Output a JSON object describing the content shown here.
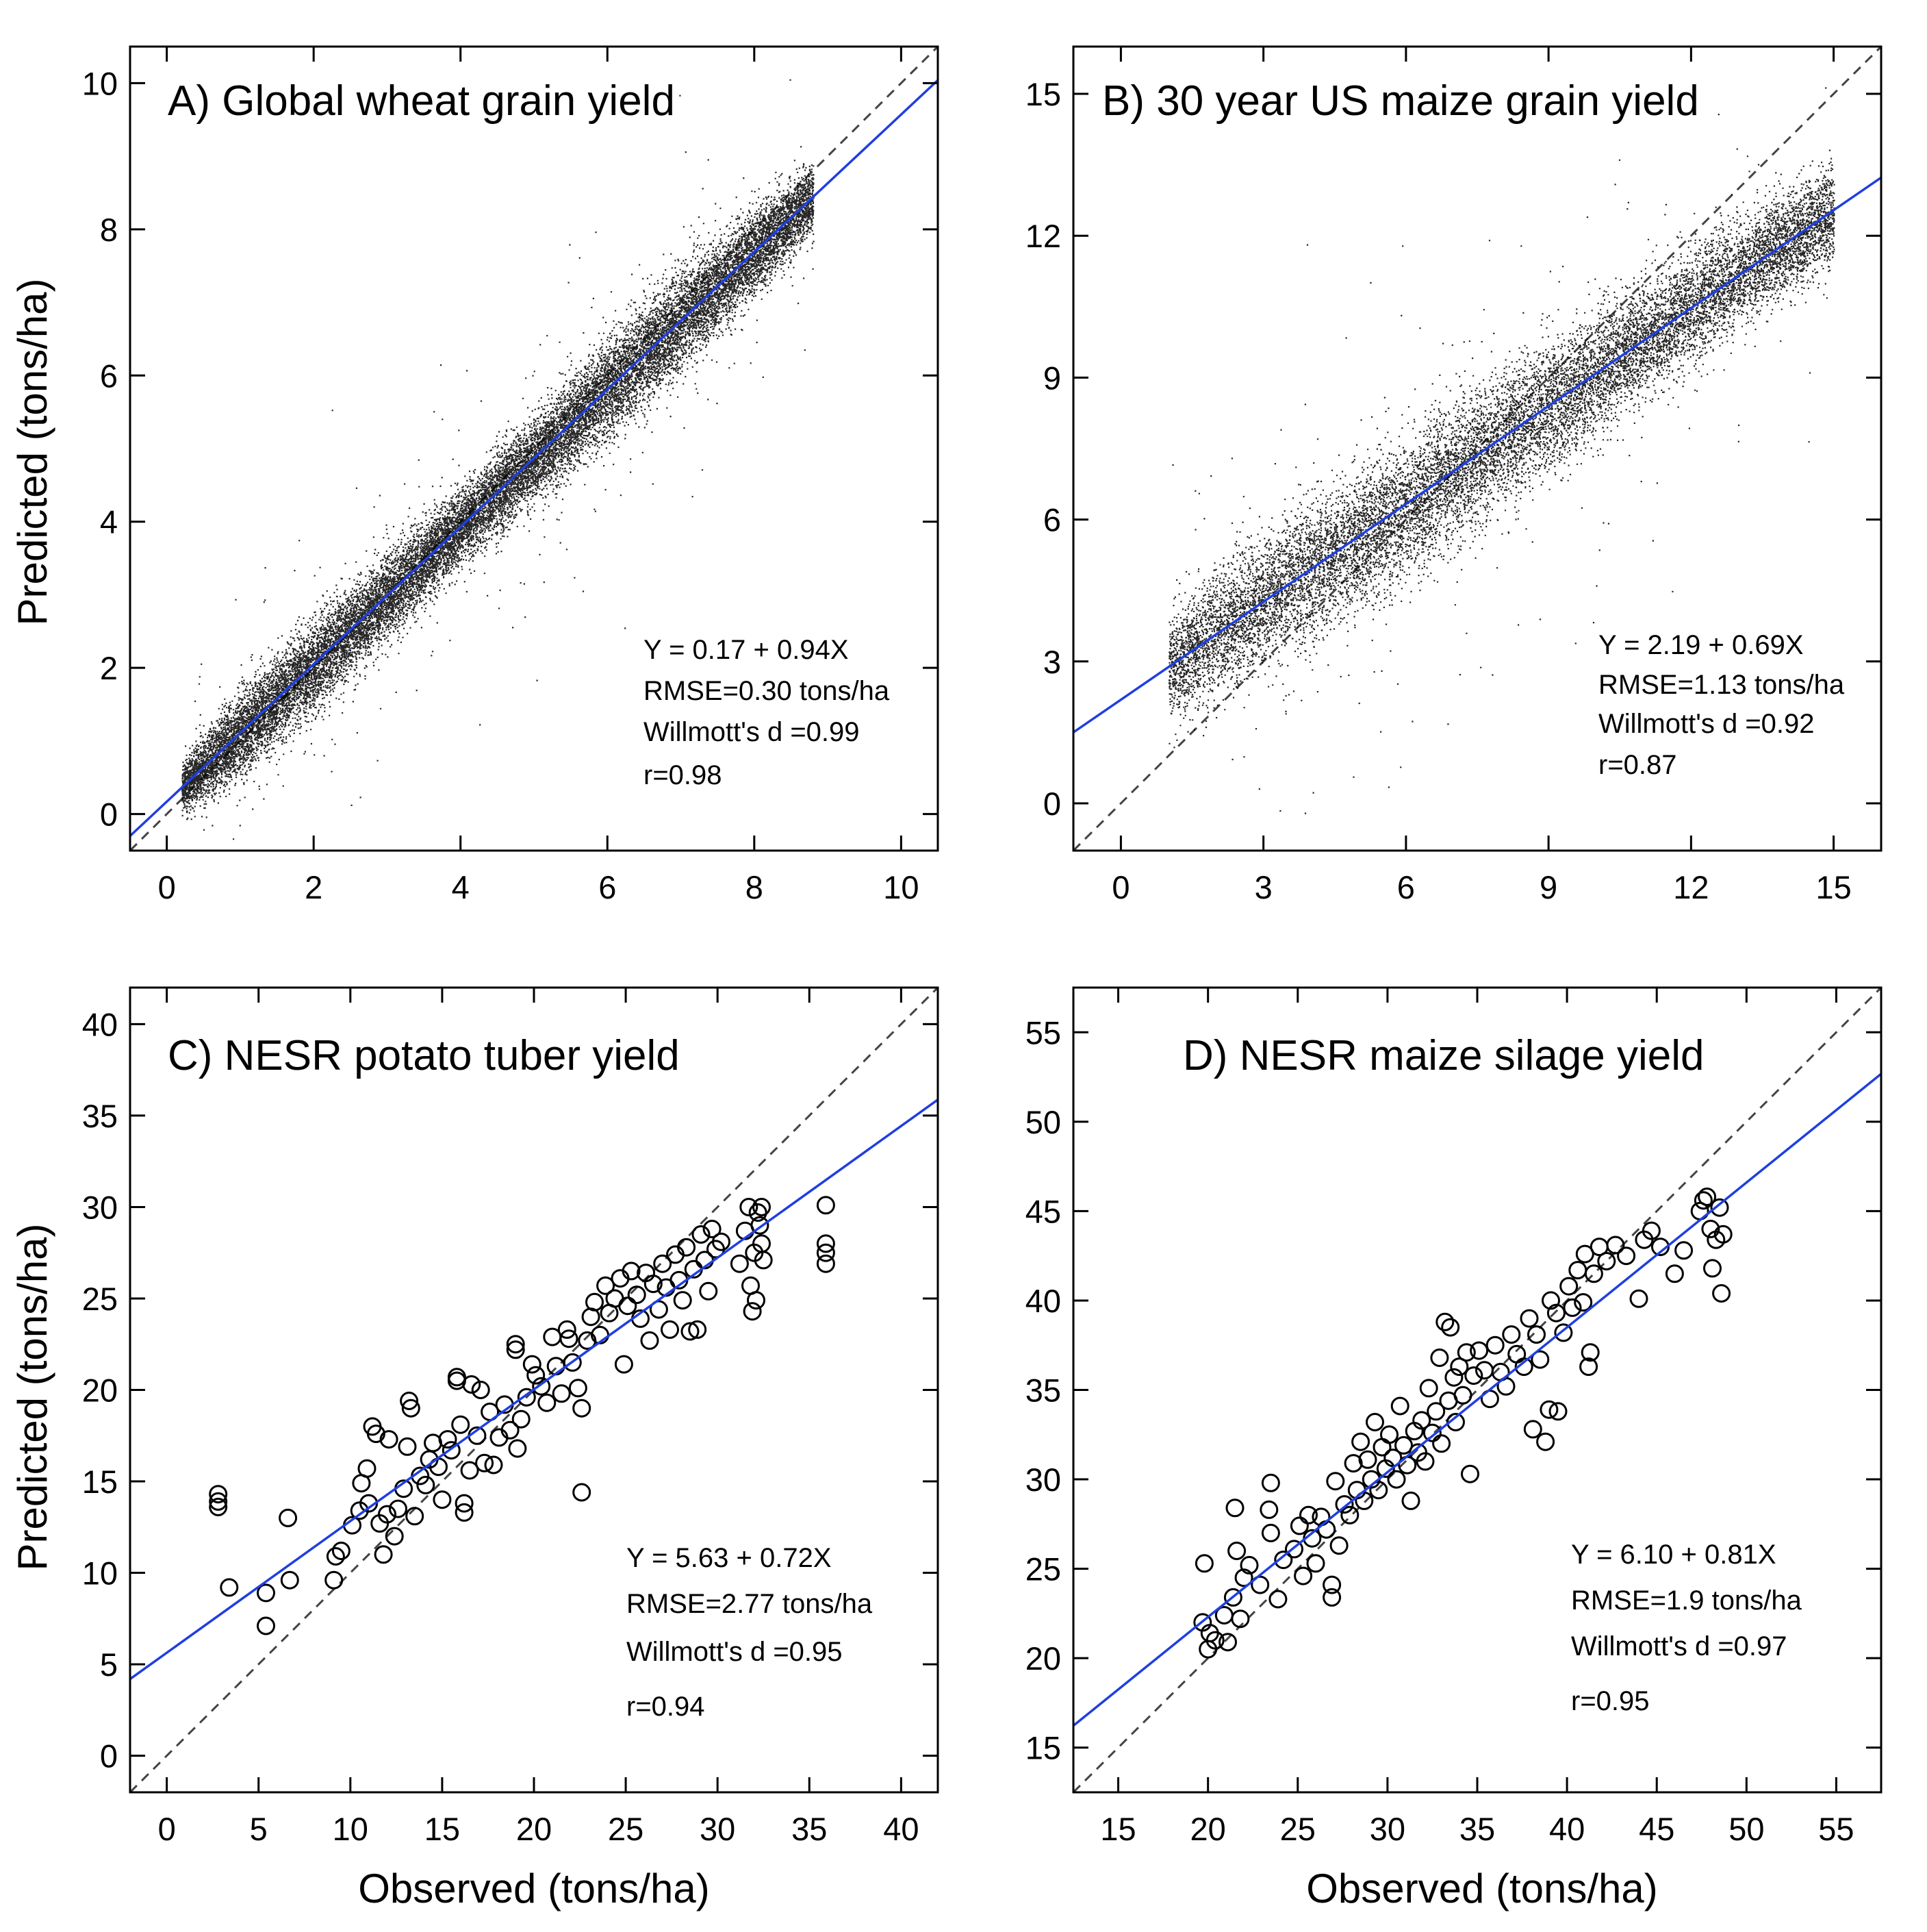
{
  "figure": {
    "x_axis_title": "Observed (tons/ha)",
    "y_axis_title": "Predicted (tons/ha)"
  },
  "chart_data": [
    {
      "type": "scatter",
      "title": "A) Global wheat grain yield",
      "xlabel": "",
      "ylabel": "Predicted (tons/ha)",
      "xlim": [
        -0.5,
        10.5
      ],
      "ylim": [
        -0.5,
        10.5
      ],
      "xticks": [
        0,
        2,
        4,
        6,
        8,
        10
      ],
      "yticks": [
        0,
        2,
        4,
        6,
        8,
        10
      ],
      "marker": "dot",
      "point_density": "very dense",
      "x_range_of_points": [
        0.2,
        8.8
      ],
      "point_cloud": {
        "x": [
          0.2,
          1,
          2,
          3,
          4,
          5,
          6,
          7,
          8,
          8.8
        ],
        "y_center": [
          0.36,
          1.11,
          2.05,
          2.99,
          3.93,
          4.87,
          5.81,
          6.75,
          7.69,
          8.44
        ],
        "y_spread": [
          0.3,
          0.5,
          0.55,
          0.5,
          0.45,
          0.5,
          0.6,
          0.6,
          0.5,
          0.4
        ]
      },
      "fit": {
        "intercept": 0.17,
        "slope": 0.94,
        "color": "#1f3fe0"
      },
      "reference_line": "1:1 dashed",
      "stats": [
        "Y = 0.17 + 0.94X",
        "RMSE=0.30 tons/ha",
        "Willmott's d =0.99",
        "r=0.98"
      ]
    },
    {
      "type": "scatter",
      "title": "B) 30 year US maize grain yield",
      "xlabel": "",
      "ylabel": "",
      "xlim": [
        -1,
        16
      ],
      "ylim": [
        -1,
        16
      ],
      "xticks": [
        0,
        3,
        6,
        9,
        12,
        15
      ],
      "yticks": [
        0,
        3,
        6,
        9,
        12,
        15
      ],
      "marker": "dot",
      "point_density": "very dense",
      "x_range_of_points": [
        1,
        15
      ],
      "point_cloud": {
        "x": [
          1,
          3,
          5,
          7,
          9,
          11,
          13,
          15
        ],
        "y_center": [
          2.9,
          4.3,
          5.6,
          7.0,
          8.4,
          9.8,
          11.2,
          12.5
        ],
        "y_spread": [
          1.0,
          1.2,
          1.3,
          1.3,
          1.2,
          1.1,
          1.0,
          0.9
        ]
      },
      "fit": {
        "intercept": 2.19,
        "slope": 0.69,
        "color": "#1f3fe0"
      },
      "reference_line": "1:1 dashed",
      "stats": [
        "Y = 2.19 + 0.69X",
        "RMSE=1.13 tons/ha",
        "Willmott's d =0.92",
        "r=0.87"
      ]
    },
    {
      "type": "scatter",
      "title": "C) NESR potato tuber yield",
      "xlabel": "Observed (tons/ha)",
      "ylabel": "Predicted (tons/ha)",
      "xlim": [
        -2,
        42
      ],
      "ylim": [
        -2,
        42
      ],
      "xticks": [
        0,
        5,
        10,
        15,
        20,
        25,
        30,
        35,
        40
      ],
      "yticks": [
        0,
        5,
        10,
        15,
        20,
        25,
        30,
        35,
        40
      ],
      "marker": "open-circle",
      "points": [
        [
          2.8,
          14.3
        ],
        [
          2.8,
          13.9
        ],
        [
          2.8,
          13.6
        ],
        [
          3.4,
          9.2
        ],
        [
          5.4,
          8.9
        ],
        [
          5.4,
          7.1
        ],
        [
          6.6,
          13.0
        ],
        [
          6.7,
          9.6
        ],
        [
          9.1,
          9.6
        ],
        [
          9.2,
          10.9
        ],
        [
          9.5,
          11.2
        ],
        [
          10.1,
          12.6
        ],
        [
          10.5,
          13.4
        ],
        [
          10.6,
          14.9
        ],
        [
          10.9,
          15.7
        ],
        [
          11,
          13.8
        ],
        [
          11.2,
          18.0
        ],
        [
          11.4,
          17.6
        ],
        [
          11.6,
          12.7
        ],
        [
          11.8,
          11.0
        ],
        [
          12,
          13.2
        ],
        [
          12.1,
          17.3
        ],
        [
          12.4,
          12.0
        ],
        [
          12.6,
          13.5
        ],
        [
          12.9,
          14.6
        ],
        [
          13.1,
          16.9
        ],
        [
          13.2,
          19.4
        ],
        [
          13.3,
          19.0
        ],
        [
          13.5,
          13.1
        ],
        [
          13.8,
          15.3
        ],
        [
          14.1,
          14.8
        ],
        [
          14.3,
          16.2
        ],
        [
          14.5,
          17.1
        ],
        [
          14.8,
          15.8
        ],
        [
          15.0,
          14.0
        ],
        [
          15.3,
          17.3
        ],
        [
          15.5,
          16.7
        ],
        [
          15.8,
          20.7
        ],
        [
          15.8,
          20.5
        ],
        [
          16.0,
          18.1
        ],
        [
          16.2,
          13.3
        ],
        [
          16.2,
          13.8
        ],
        [
          16.5,
          15.6
        ],
        [
          16.6,
          20.3
        ],
        [
          16.9,
          17.5
        ],
        [
          17.1,
          20.0
        ],
        [
          17.3,
          16.0
        ],
        [
          17.6,
          18.8
        ],
        [
          17.8,
          15.9
        ],
        [
          18.1,
          17.4
        ],
        [
          18.4,
          19.2
        ],
        [
          18.7,
          17.8
        ],
        [
          19.0,
          22.5
        ],
        [
          19.0,
          22.2
        ],
        [
          19.1,
          16.8
        ],
        [
          19.3,
          18.4
        ],
        [
          19.6,
          19.6
        ],
        [
          19.9,
          21.4
        ],
        [
          20.1,
          20.8
        ],
        [
          20.4,
          20.2
        ],
        [
          20.7,
          19.3
        ],
        [
          21.0,
          22.9
        ],
        [
          21.2,
          21.3
        ],
        [
          21.5,
          19.8
        ],
        [
          21.8,
          23.3
        ],
        [
          21.9,
          22.8
        ],
        [
          22.1,
          21.5
        ],
        [
          22.4,
          20.1
        ],
        [
          22.6,
          19.0
        ],
        [
          22.6,
          14.4
        ],
        [
          22.9,
          22.7
        ],
        [
          23.1,
          24.0
        ],
        [
          23.3,
          24.8
        ],
        [
          23.6,
          23.0
        ],
        [
          23.9,
          25.7
        ],
        [
          24.1,
          24.2
        ],
        [
          24.4,
          25.0
        ],
        [
          24.7,
          26.1
        ],
        [
          24.9,
          21.4
        ],
        [
          25.1,
          24.6
        ],
        [
          25.3,
          26.5
        ],
        [
          25.6,
          25.2
        ],
        [
          25.8,
          23.9
        ],
        [
          26.1,
          26.4
        ],
        [
          26.3,
          22.7
        ],
        [
          26.5,
          25.8
        ],
        [
          26.8,
          24.4
        ],
        [
          27.0,
          26.9
        ],
        [
          27.2,
          25.6
        ],
        [
          27.4,
          23.3
        ],
        [
          27.7,
          27.4
        ],
        [
          27.9,
          26.0
        ],
        [
          28.1,
          24.9
        ],
        [
          28.3,
          27.8
        ],
        [
          28.5,
          23.2
        ],
        [
          28.7,
          26.6
        ],
        [
          28.9,
          23.3
        ],
        [
          29.1,
          28.5
        ],
        [
          29.3,
          27.1
        ],
        [
          29.5,
          25.4
        ],
        [
          29.7,
          28.8
        ],
        [
          29.9,
          27.7
        ],
        [
          30.2,
          28.1
        ],
        [
          31.2,
          26.9
        ],
        [
          31.5,
          28.7
        ],
        [
          31.7,
          30.0
        ],
        [
          31.8,
          25.7
        ],
        [
          31.9,
          24.3
        ],
        [
          32.0,
          27.5
        ],
        [
          32.1,
          24.9
        ],
        [
          32.2,
          29.7
        ],
        [
          32.3,
          29.0
        ],
        [
          32.4,
          28.0
        ],
        [
          32.4,
          30.0
        ],
        [
          32.5,
          27.1
        ],
        [
          35.9,
          30.1
        ],
        [
          35.9,
          28.0
        ],
        [
          35.9,
          27.5
        ],
        [
          35.9,
          26.9
        ]
      ],
      "fit": {
        "intercept": 5.63,
        "slope": 0.72,
        "color": "#1f3fe0"
      },
      "reference_line": "1:1 dashed",
      "stats": [
        "Y = 5.63 + 0.72X",
        "RMSE=2.77 tons/ha",
        "Willmott's d =0.95",
        "r=0.94"
      ]
    },
    {
      "type": "scatter",
      "title": "D) NESR maize silage yield",
      "xlabel": "Observed (tons/ha)",
      "ylabel": "",
      "xlim": [
        12.5,
        57.5
      ],
      "ylim": [
        12.5,
        57.5
      ],
      "xticks": [
        15,
        20,
        25,
        30,
        35,
        40,
        45,
        50,
        55
      ],
      "yticks": [
        15,
        20,
        25,
        30,
        35,
        40,
        45,
        50,
        55
      ],
      "marker": "open-circle",
      "points": [
        [
          19.8,
          25.3
        ],
        [
          19.7,
          22.0
        ],
        [
          20.1,
          21.4
        ],
        [
          20.0,
          20.5
        ],
        [
          20.4,
          21.0
        ],
        [
          20.9,
          22.4
        ],
        [
          21.1,
          20.9
        ],
        [
          21.4,
          23.4
        ],
        [
          21.6,
          26.0
        ],
        [
          21.5,
          28.4
        ],
        [
          21.8,
          22.2
        ],
        [
          22.0,
          24.5
        ],
        [
          22.3,
          25.2
        ],
        [
          22.9,
          24.1
        ],
        [
          23.4,
          28.3
        ],
        [
          23.5,
          27.0
        ],
        [
          23.5,
          29.8
        ],
        [
          23.9,
          23.3
        ],
        [
          24.2,
          25.5
        ],
        [
          24.8,
          26.1
        ],
        [
          25.1,
          27.4
        ],
        [
          25.3,
          24.6
        ],
        [
          25.6,
          28.0
        ],
        [
          25.8,
          26.7
        ],
        [
          26.0,
          25.3
        ],
        [
          26.3,
          27.9
        ],
        [
          26.6,
          27.2
        ],
        [
          26.9,
          24.1
        ],
        [
          26.9,
          23.4
        ],
        [
          27.1,
          29.9
        ],
        [
          27.3,
          26.3
        ],
        [
          27.6,
          28.6
        ],
        [
          27.9,
          28.0
        ],
        [
          28.1,
          30.9
        ],
        [
          28.3,
          29.4
        ],
        [
          28.5,
          32.1
        ],
        [
          28.7,
          28.8
        ],
        [
          28.9,
          31.1
        ],
        [
          29.1,
          30.0
        ],
        [
          29.3,
          33.2
        ],
        [
          29.5,
          29.4
        ],
        [
          29.7,
          31.8
        ],
        [
          29.9,
          30.6
        ],
        [
          30.1,
          32.5
        ],
        [
          30.3,
          31.2
        ],
        [
          30.5,
          30.0
        ],
        [
          30.7,
          34.1
        ],
        [
          30.9,
          31.9
        ],
        [
          31.1,
          30.8
        ],
        [
          31.3,
          28.8
        ],
        [
          31.5,
          32.7
        ],
        [
          31.7,
          31.5
        ],
        [
          31.9,
          33.3
        ],
        [
          32.1,
          31.0
        ],
        [
          32.3,
          35.1
        ],
        [
          32.5,
          32.6
        ],
        [
          32.7,
          33.8
        ],
        [
          32.9,
          36.8
        ],
        [
          33.0,
          32.0
        ],
        [
          33.2,
          38.8
        ],
        [
          33.5,
          38.5
        ],
        [
          33.4,
          34.4
        ],
        [
          33.7,
          35.7
        ],
        [
          33.8,
          33.2
        ],
        [
          34.0,
          36.3
        ],
        [
          34.2,
          34.7
        ],
        [
          34.4,
          37.1
        ],
        [
          34.6,
          30.3
        ],
        [
          34.8,
          35.8
        ],
        [
          35.1,
          37.2
        ],
        [
          35.4,
          36.1
        ],
        [
          35.7,
          34.5
        ],
        [
          36.0,
          37.5
        ],
        [
          36.3,
          36.0
        ],
        [
          36.6,
          35.2
        ],
        [
          36.9,
          38.1
        ],
        [
          37.2,
          37.0
        ],
        [
          37.6,
          36.3
        ],
        [
          37.9,
          39.0
        ],
        [
          38.1,
          32.8
        ],
        [
          38.3,
          38.1
        ],
        [
          38.5,
          36.7
        ],
        [
          38.8,
          32.1
        ],
        [
          39.0,
          33.9
        ],
        [
          39.1,
          40.0
        ],
        [
          39.4,
          39.3
        ],
        [
          39.5,
          33.8
        ],
        [
          39.8,
          38.2
        ],
        [
          40.1,
          40.8
        ],
        [
          40.3,
          39.6
        ],
        [
          40.6,
          41.7
        ],
        [
          40.9,
          39.9
        ],
        [
          41.0,
          42.6
        ],
        [
          41.2,
          36.3
        ],
        [
          41.3,
          37.1
        ],
        [
          41.5,
          41.5
        ],
        [
          41.8,
          43.0
        ],
        [
          42.2,
          42.2
        ],
        [
          42.7,
          43.1
        ],
        [
          43.3,
          42.5
        ],
        [
          44.0,
          40.1
        ],
        [
          44.3,
          43.4
        ],
        [
          44.7,
          43.9
        ],
        [
          45.2,
          43.0
        ],
        [
          46.0,
          41.5
        ],
        [
          46.5,
          42.8
        ],
        [
          47.4,
          45.0
        ],
        [
          47.6,
          45.6
        ],
        [
          47.8,
          45.8
        ],
        [
          48.0,
          44.0
        ],
        [
          48.1,
          41.8
        ],
        [
          48.3,
          43.4
        ],
        [
          48.5,
          45.2
        ],
        [
          48.6,
          40.4
        ],
        [
          48.7,
          43.7
        ]
      ],
      "fit": {
        "intercept": 6.1,
        "slope": 0.81,
        "color": "#1f3fe0"
      },
      "reference_line": "1:1 dashed",
      "stats": [
        "Y = 6.10 + 0.81X",
        "RMSE=1.9 tons/ha",
        "Willmott's d =0.97",
        "r=0.95"
      ]
    }
  ]
}
